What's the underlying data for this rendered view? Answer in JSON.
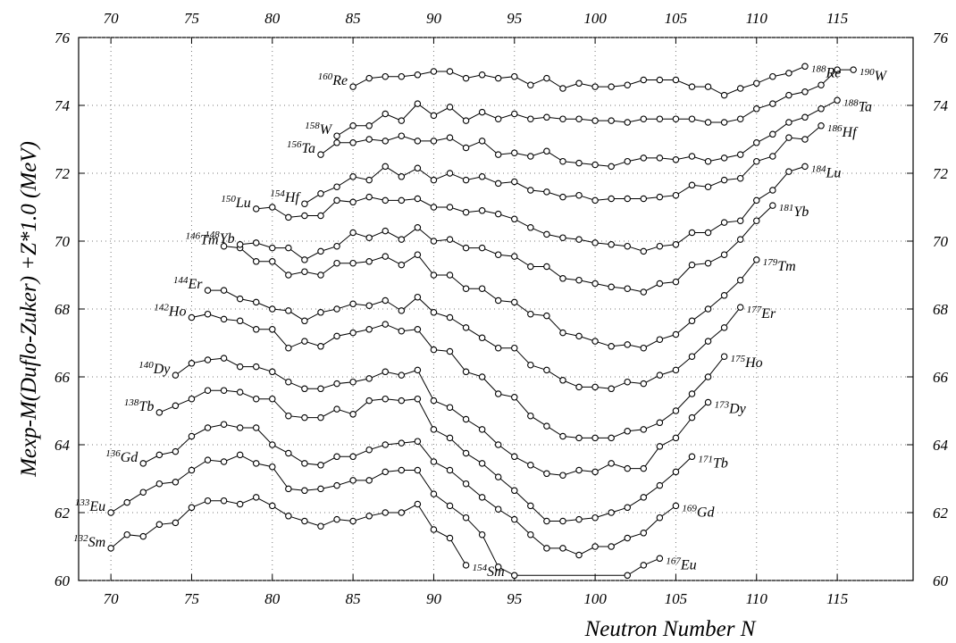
{
  "chart_data": {
    "type": "line",
    "x_label": "Neutron Number  N",
    "y_label": "Mexp-M(Duflo-Zuker)  +Z*1.0 (MeV)",
    "xlim": [
      68,
      119.7
    ],
    "ylim": [
      60,
      76
    ],
    "xticks": [
      70,
      75,
      80,
      85,
      90,
      95,
      100,
      105,
      110,
      115
    ],
    "yticks": [
      60,
      62,
      64,
      66,
      68,
      70,
      72,
      74,
      76
    ],
    "grid": true,
    "color": "#000000",
    "series": [
      {
        "start_label": {
          "mass": "132",
          "element": "Sm"
        },
        "end_label": {
          "mass": "154",
          "element": "Sm"
        },
        "x": [
          70,
          71,
          72,
          73,
          74,
          75,
          76,
          77,
          78,
          79,
          80,
          81,
          82,
          83,
          84,
          85,
          86,
          87,
          88,
          89,
          90,
          91,
          92
        ],
        "values": [
          60.95,
          61.35,
          61.3,
          61.65,
          61.7,
          62.15,
          62.35,
          62.35,
          62.25,
          62.45,
          62.2,
          61.9,
          61.75,
          61.6,
          61.8,
          61.75,
          61.9,
          62.0,
          62.0,
          62.25,
          61.5,
          61.25,
          60.45
        ]
      },
      {
        "start_label": {
          "mass": "133",
          "element": "Eu"
        },
        "end_label": {
          "mass": "167",
          "element": "Eu"
        },
        "x": [
          70,
          71,
          72,
          73,
          74,
          75,
          76,
          77,
          78,
          79,
          80,
          81,
          82,
          83,
          84,
          85,
          86,
          87,
          88,
          89,
          90,
          91,
          92,
          93,
          94,
          95,
          102,
          103,
          104
        ],
        "values": [
          62.0,
          62.3,
          62.6,
          62.85,
          62.9,
          63.25,
          63.55,
          63.5,
          63.7,
          63.45,
          63.35,
          62.7,
          62.65,
          62.7,
          62.8,
          62.95,
          62.95,
          63.2,
          63.25,
          63.25,
          62.55,
          62.2,
          61.85,
          61.35,
          60.4,
          60.15,
          60.15,
          60.45,
          60.65
        ]
      },
      {
        "start_label": {
          "mass": "136",
          "element": "Gd"
        },
        "end_label": {
          "mass": "169",
          "element": "Gd"
        },
        "x": [
          72,
          73,
          74,
          75,
          76,
          77,
          78,
          79,
          80,
          81,
          82,
          83,
          84,
          85,
          86,
          87,
          88,
          89,
          90,
          91,
          92,
          93,
          94,
          95,
          96,
          97,
          98,
          99,
          100,
          101,
          102,
          103,
          104,
          105
        ],
        "values": [
          63.45,
          63.7,
          63.8,
          64.25,
          64.5,
          64.6,
          64.5,
          64.5,
          64.0,
          63.75,
          63.45,
          63.4,
          63.65,
          63.65,
          63.85,
          64.0,
          64.05,
          64.1,
          63.5,
          63.25,
          62.85,
          62.45,
          62.1,
          61.8,
          61.35,
          60.95,
          60.95,
          60.75,
          61.0,
          61.0,
          61.25,
          61.4,
          61.85,
          62.2
        ]
      },
      {
        "start_label": {
          "mass": "138",
          "element": "Tb"
        },
        "end_label": {
          "mass": "171",
          "element": "Tb"
        },
        "x": [
          73,
          74,
          75,
          76,
          77,
          78,
          79,
          80,
          81,
          82,
          83,
          84,
          85,
          86,
          87,
          88,
          89,
          90,
          91,
          92,
          93,
          94,
          95,
          96,
          97,
          98,
          99,
          100,
          101,
          102,
          103,
          104,
          105,
          106
        ],
        "values": [
          64.95,
          65.15,
          65.35,
          65.6,
          65.6,
          65.55,
          65.35,
          65.35,
          64.85,
          64.8,
          64.8,
          65.05,
          64.9,
          65.3,
          65.35,
          65.3,
          65.35,
          64.45,
          64.2,
          63.75,
          63.45,
          63.05,
          62.65,
          62.2,
          61.75,
          61.75,
          61.8,
          61.85,
          62.0,
          62.15,
          62.45,
          62.8,
          63.2,
          63.65
        ]
      },
      {
        "start_label": {
          "mass": "140",
          "element": "Dy"
        },
        "end_label": {
          "mass": "173",
          "element": "Dy"
        },
        "x": [
          74,
          75,
          76,
          77,
          78,
          79,
          80,
          81,
          82,
          83,
          84,
          85,
          86,
          87,
          88,
          89,
          90,
          91,
          92,
          93,
          94,
          95,
          96,
          97,
          98,
          99,
          100,
          101,
          102,
          103,
          104,
          105,
          106,
          107
        ],
        "values": [
          66.05,
          66.4,
          66.5,
          66.55,
          66.3,
          66.3,
          66.15,
          65.85,
          65.65,
          65.65,
          65.8,
          65.85,
          65.95,
          66.15,
          66.05,
          66.2,
          65.3,
          65.1,
          64.75,
          64.45,
          64.0,
          63.65,
          63.4,
          63.15,
          63.1,
          63.25,
          63.2,
          63.45,
          63.3,
          63.3,
          63.95,
          64.2,
          64.8,
          65.25
        ]
      },
      {
        "start_label": {
          "mass": "142",
          "element": "Ho"
        },
        "end_label": {
          "mass": "175",
          "element": "Ho"
        },
        "x": [
          75,
          76,
          77,
          78,
          79,
          80,
          81,
          82,
          83,
          84,
          85,
          86,
          87,
          88,
          89,
          90,
          91,
          92,
          93,
          94,
          95,
          96,
          97,
          98,
          99,
          100,
          101,
          102,
          103,
          104,
          105,
          106,
          107,
          108
        ],
        "values": [
          67.75,
          67.85,
          67.7,
          67.65,
          67.4,
          67.4,
          66.85,
          67.05,
          66.9,
          67.2,
          67.3,
          67.4,
          67.55,
          67.35,
          67.4,
          66.8,
          66.75,
          66.15,
          66.0,
          65.5,
          65.4,
          64.85,
          64.55,
          64.25,
          64.2,
          64.2,
          64.2,
          64.4,
          64.45,
          64.65,
          65.0,
          65.5,
          66.0,
          66.6
        ]
      },
      {
        "start_label": {
          "mass": "144",
          "element": "Er"
        },
        "end_label": {
          "mass": "177",
          "element": "Er"
        },
        "x": [
          76,
          77,
          78,
          79,
          80,
          81,
          82,
          83,
          84,
          85,
          86,
          87,
          88,
          89,
          90,
          91,
          92,
          93,
          94,
          95,
          96,
          97,
          98,
          99,
          100,
          101,
          102,
          103,
          104,
          105,
          106,
          107,
          108,
          109
        ],
        "values": [
          68.55,
          68.55,
          68.3,
          68.2,
          68.0,
          67.95,
          67.65,
          67.9,
          68.0,
          68.15,
          68.1,
          68.25,
          67.95,
          68.35,
          67.9,
          67.75,
          67.45,
          67.15,
          66.85,
          66.85,
          66.35,
          66.2,
          65.9,
          65.7,
          65.7,
          65.65,
          65.85,
          65.8,
          66.05,
          66.2,
          66.6,
          67.05,
          67.45,
          68.05
        ]
      },
      {
        "start_label": {
          "mass": "146",
          "element": "Tm"
        },
        "end_label": {
          "mass": "179",
          "element": "Tm"
        },
        "x": [
          77,
          78,
          79,
          80,
          81,
          82,
          83,
          84,
          85,
          86,
          87,
          88,
          89,
          90,
          91,
          92,
          93,
          94,
          95,
          96,
          97,
          98,
          99,
          100,
          101,
          102,
          103,
          104,
          105,
          106,
          107,
          108,
          109,
          110
        ],
        "values": [
          69.85,
          69.8,
          69.4,
          69.4,
          69.0,
          69.1,
          69.0,
          69.35,
          69.35,
          69.4,
          69.55,
          69.3,
          69.6,
          69.0,
          69.0,
          68.6,
          68.6,
          68.25,
          68.2,
          67.85,
          67.8,
          67.3,
          67.2,
          67.05,
          66.9,
          66.95,
          66.85,
          67.1,
          67.25,
          67.65,
          68.0,
          68.4,
          68.85,
          69.45
        ]
      },
      {
        "start_label": {
          "mass": "148",
          "element": "Yb"
        },
        "end_label": {
          "mass": "181",
          "element": "Yb"
        },
        "x": [
          78,
          79,
          80,
          81,
          82,
          83,
          84,
          85,
          86,
          87,
          88,
          89,
          90,
          91,
          92,
          93,
          94,
          95,
          96,
          97,
          98,
          99,
          100,
          101,
          102,
          103,
          104,
          105,
          106,
          107,
          108,
          109,
          110,
          111
        ],
        "values": [
          69.9,
          69.95,
          69.8,
          69.8,
          69.45,
          69.7,
          69.85,
          70.25,
          70.1,
          70.3,
          70.05,
          70.4,
          70.0,
          70.05,
          69.8,
          69.8,
          69.6,
          69.55,
          69.25,
          69.25,
          68.9,
          68.85,
          68.75,
          68.65,
          68.6,
          68.5,
          68.75,
          68.8,
          69.3,
          69.35,
          69.6,
          70.05,
          70.6,
          71.05
        ]
      },
      {
        "start_label": {
          "mass": "150",
          "element": "Lu"
        },
        "end_label": {
          "mass": "184",
          "element": "Lu"
        },
        "x": [
          79,
          80,
          81,
          82,
          83,
          84,
          85,
          86,
          87,
          88,
          89,
          90,
          91,
          92,
          93,
          94,
          95,
          96,
          97,
          98,
          99,
          100,
          101,
          102,
          103,
          104,
          105,
          106,
          107,
          108,
          109,
          110,
          111,
          112,
          113
        ],
        "values": [
          70.95,
          71.0,
          70.7,
          70.75,
          70.75,
          71.2,
          71.15,
          71.3,
          71.2,
          71.2,
          71.25,
          71.0,
          71.0,
          70.85,
          70.9,
          70.8,
          70.65,
          70.4,
          70.2,
          70.1,
          70.05,
          69.95,
          69.9,
          69.85,
          69.7,
          69.85,
          69.9,
          70.25,
          70.25,
          70.55,
          70.6,
          71.2,
          71.5,
          72.05,
          72.2
        ]
      },
      {
        "start_label": {
          "mass": "154",
          "element": "Hf"
        },
        "end_label": {
          "mass": "186",
          "element": "Hf"
        },
        "x": [
          82,
          83,
          84,
          85,
          86,
          87,
          88,
          89,
          90,
          91,
          92,
          93,
          94,
          95,
          96,
          97,
          98,
          99,
          100,
          101,
          102,
          103,
          104,
          105,
          106,
          107,
          108,
          109,
          110,
          111,
          112,
          113,
          114
        ],
        "values": [
          71.1,
          71.4,
          71.6,
          71.9,
          71.8,
          72.2,
          71.9,
          72.15,
          71.8,
          72.0,
          71.8,
          71.9,
          71.7,
          71.75,
          71.5,
          71.45,
          71.3,
          71.35,
          71.2,
          71.25,
          71.25,
          71.25,
          71.3,
          71.35,
          71.65,
          71.6,
          71.8,
          71.85,
          72.35,
          72.5,
          73.05,
          73.0,
          73.4
        ]
      },
      {
        "start_label": {
          "mass": "156",
          "element": "Ta"
        },
        "end_label": {
          "mass": "188",
          "element": "Ta"
        },
        "x": [
          83,
          84,
          85,
          86,
          87,
          88,
          89,
          90,
          91,
          92,
          93,
          94,
          95,
          96,
          97,
          98,
          99,
          100,
          101,
          102,
          103,
          104,
          105,
          106,
          107,
          108,
          109,
          110,
          111,
          112,
          113,
          114,
          115
        ],
        "values": [
          72.55,
          72.9,
          72.9,
          73.0,
          72.95,
          73.1,
          72.95,
          72.95,
          73.05,
          72.75,
          72.95,
          72.55,
          72.6,
          72.5,
          72.65,
          72.35,
          72.3,
          72.25,
          72.2,
          72.35,
          72.45,
          72.45,
          72.4,
          72.5,
          72.35,
          72.45,
          72.55,
          72.9,
          73.15,
          73.5,
          73.65,
          73.9,
          74.15
        ]
      },
      {
        "start_label": {
          "mass": "158",
          "element": "W"
        },
        "end_label": {
          "mass": "190",
          "element": "W"
        },
        "x": [
          84,
          85,
          86,
          87,
          88,
          89,
          90,
          91,
          92,
          93,
          94,
          95,
          96,
          97,
          98,
          99,
          100,
          101,
          102,
          103,
          104,
          105,
          106,
          107,
          108,
          109,
          110,
          111,
          112,
          113,
          114,
          115,
          116
        ],
        "values": [
          73.1,
          73.4,
          73.4,
          73.75,
          73.55,
          74.05,
          73.7,
          73.95,
          73.55,
          73.8,
          73.6,
          73.75,
          73.6,
          73.65,
          73.6,
          73.6,
          73.55,
          73.55,
          73.5,
          73.6,
          73.6,
          73.6,
          73.6,
          73.5,
          73.5,
          73.6,
          73.9,
          74.05,
          74.3,
          74.4,
          74.6,
          75.05,
          75.05
        ]
      },
      {
        "start_label": {
          "mass": "160",
          "element": "Re"
        },
        "end_label": {
          "mass": "188",
          "element": "Re"
        },
        "x": [
          85,
          86,
          87,
          88,
          89,
          90,
          91,
          92,
          93,
          94,
          95,
          96,
          97,
          98,
          99,
          100,
          101,
          102,
          103,
          104,
          105,
          106,
          107,
          108,
          109,
          110,
          111,
          112,
          113
        ],
        "values": [
          74.55,
          74.8,
          74.85,
          74.85,
          74.9,
          75.0,
          75.0,
          74.8,
          74.9,
          74.8,
          74.85,
          74.6,
          74.8,
          74.5,
          74.65,
          74.55,
          74.55,
          74.6,
          74.75,
          74.75,
          74.75,
          74.55,
          74.55,
          74.3,
          74.5,
          74.65,
          74.85,
          74.95,
          75.15
        ]
      }
    ]
  }
}
